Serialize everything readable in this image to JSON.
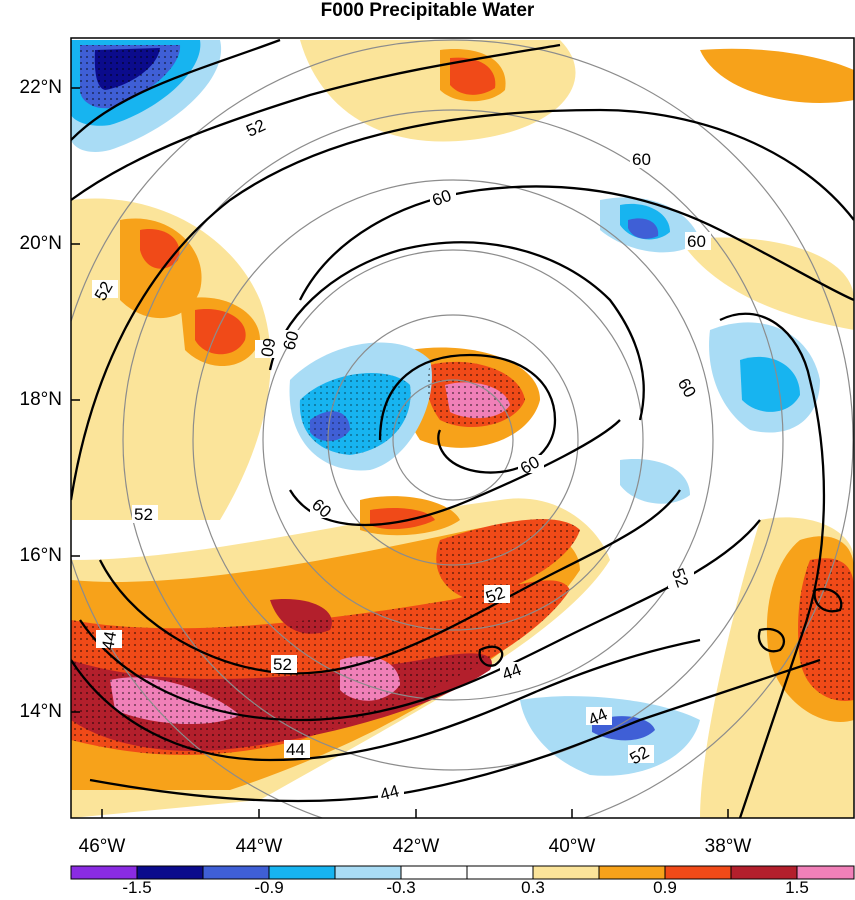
{
  "title": "F000 Precipitable Water",
  "lat_ticks": [
    "22°N",
    "20°N",
    "18°N",
    "16°N",
    "14°N"
  ],
  "lon_ticks": [
    "46°W",
    "44°W",
    "42°W",
    "40°W",
    "38°W"
  ],
  "colorbar": {
    "labels": [
      "-1.5",
      "-0.9",
      "-0.3",
      "0.3",
      "0.9",
      "1.5"
    ],
    "colors": [
      "#8a2be2",
      "#0b0b8c",
      "#3f5fd6",
      "#17b4f0",
      "#a9dcf5",
      "#ffffff",
      "#ffffff",
      "#fbe49a",
      "#f7a21a",
      "#f04a18",
      "#b31f2c",
      "#f080b8"
    ]
  },
  "contour_labels": {
    "c52": "52",
    "c60": "60",
    "c44": "44"
  }
}
